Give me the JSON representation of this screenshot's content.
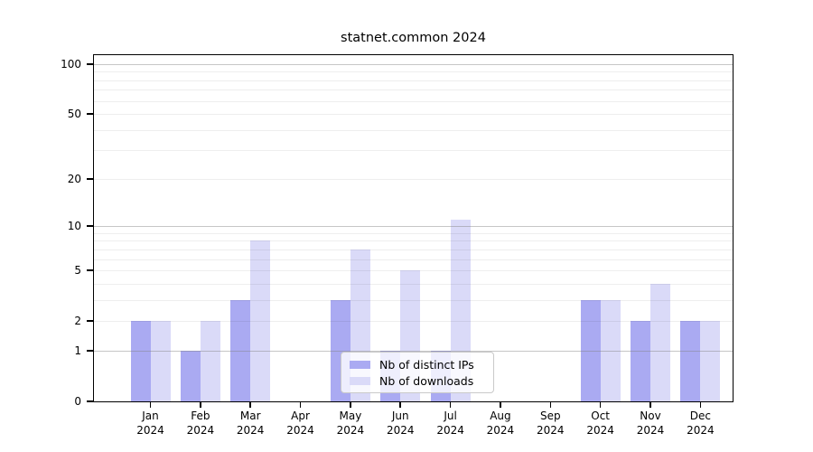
{
  "chart_data": {
    "type": "bar",
    "title": "statnet.common 2024",
    "categories": [
      "Jan",
      "Feb",
      "Mar",
      "Apr",
      "May",
      "Jun",
      "Jul",
      "Aug",
      "Sep",
      "Oct",
      "Nov",
      "Dec"
    ],
    "x_year": "2024",
    "series": [
      {
        "name": "Nb of distinct IPs",
        "color": "#aaaaf2",
        "values": [
          2,
          1,
          3,
          0,
          3,
          1,
          1,
          0,
          0,
          3,
          2,
          2
        ]
      },
      {
        "name": "Nb of downloads",
        "color": "#dadaf8",
        "values": [
          2,
          2,
          8,
          0,
          7,
          5,
          11,
          0,
          0,
          3,
          4,
          2
        ]
      }
    ],
    "scale": "log1p",
    "y_ticks": [
      0,
      1,
      2,
      5,
      10,
      20,
      50,
      100
    ],
    "y_major_gridlines": [
      1,
      10,
      100
    ],
    "y_minor_gridlines": [
      2,
      3,
      4,
      5,
      6,
      7,
      8,
      9,
      20,
      30,
      40,
      50,
      60,
      70,
      80,
      90
    ],
    "ylim": [
      0,
      113
    ],
    "xlabel": "",
    "ylabel": "",
    "grid": "horizontal",
    "legend_position": "bottom-center-inside",
    "colors": {
      "axis": "#000000",
      "major_grid": "#c2c2c2",
      "minor_grid": "#efefef",
      "background": "#ffffff"
    }
  }
}
